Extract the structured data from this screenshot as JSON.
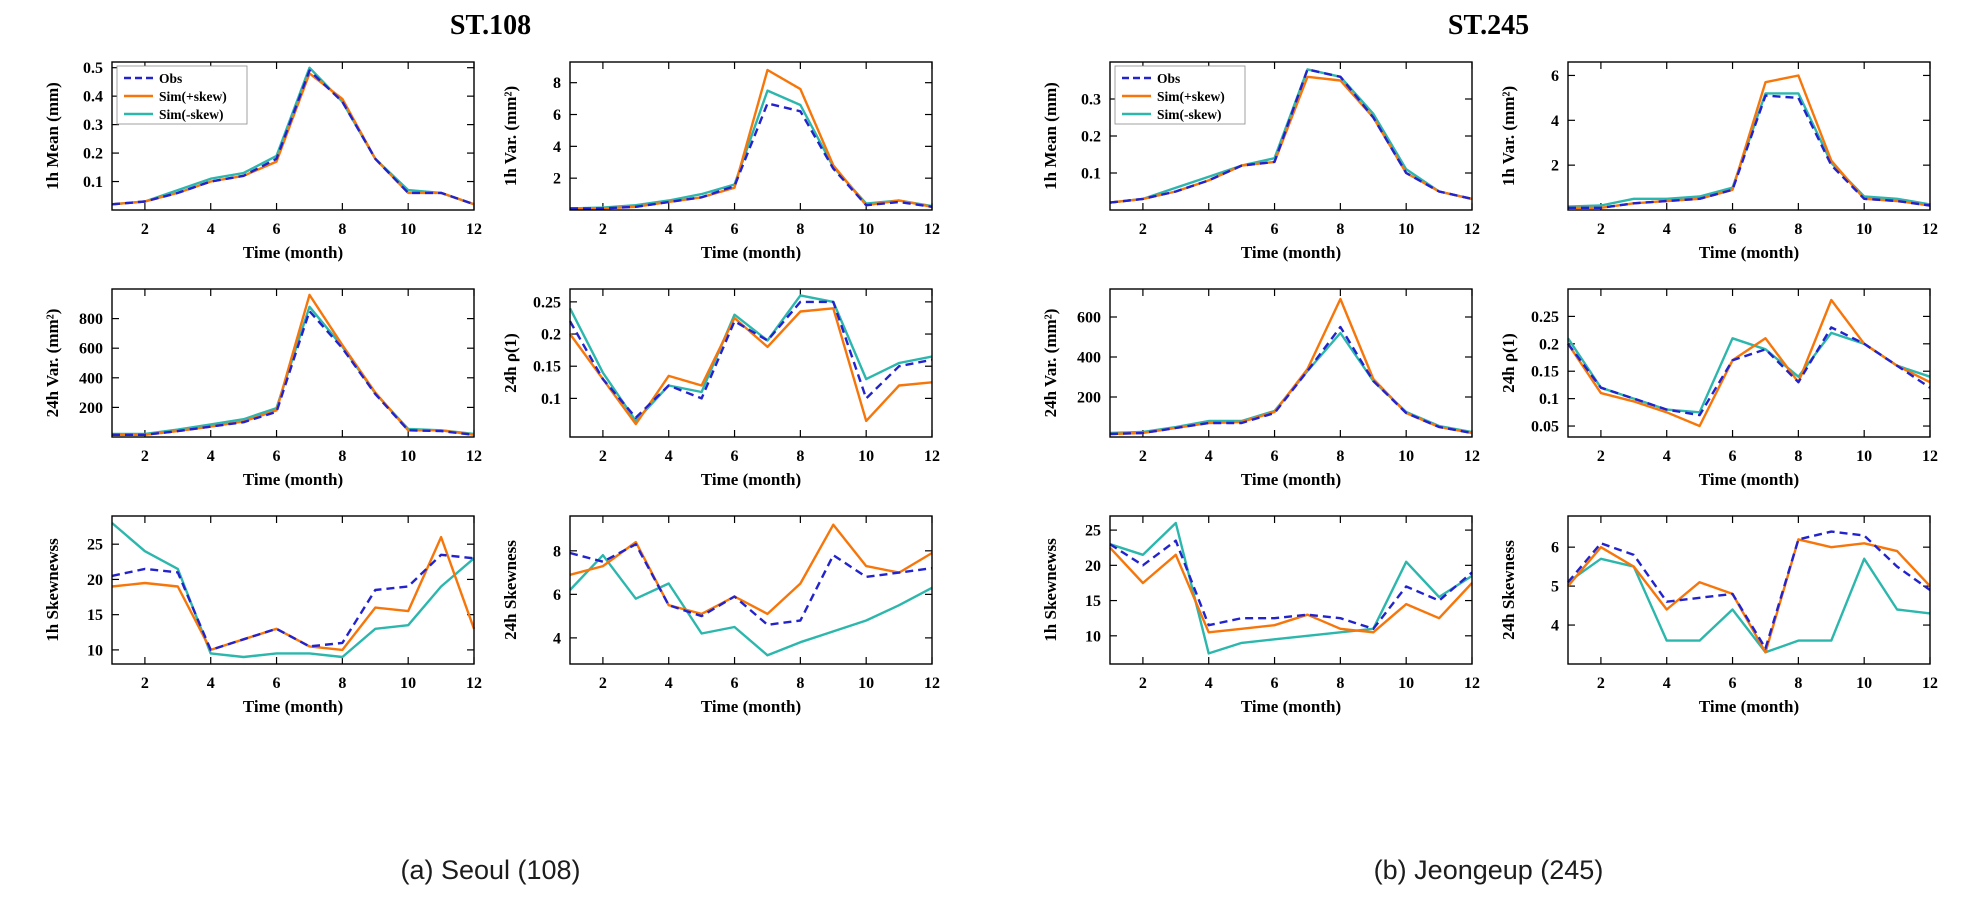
{
  "stations": [
    {
      "title": "ST.108",
      "caption": "(a) Seoul (108)"
    },
    {
      "title": "ST.245",
      "caption": "(b) Jeongeup (245)"
    }
  ],
  "legend": {
    "entries": [
      {
        "label": "Obs",
        "color": "#2323cd",
        "dash": "dashed"
      },
      {
        "label": "Sim(+skew)",
        "color": "#f7760a",
        "dash": "solid"
      },
      {
        "label": "Sim(-skew)",
        "color": "#2cb7ad",
        "dash": "solid"
      }
    ]
  },
  "chart_data": [
    {
      "station_index": 0,
      "type": "line",
      "ylabel": "1h Mean (mm)",
      "xlabel": "Time (month)",
      "x": [
        1,
        2,
        3,
        4,
        5,
        6,
        7,
        8,
        9,
        10,
        11,
        12
      ],
      "xticks": [
        2,
        4,
        6,
        8,
        10,
        12
      ],
      "yticks": [
        0.1,
        0.2,
        0.3,
        0.4,
        0.5
      ],
      "ylim": [
        0,
        0.52
      ],
      "legend": true,
      "series": [
        {
          "name": "Obs",
          "values": [
            0.02,
            0.03,
            0.06,
            0.1,
            0.12,
            0.18,
            0.49,
            0.38,
            0.18,
            0.06,
            0.06,
            0.02
          ]
        },
        {
          "name": "Sim(+skew)",
          "values": [
            0.02,
            0.03,
            0.06,
            0.1,
            0.12,
            0.17,
            0.48,
            0.39,
            0.18,
            0.06,
            0.06,
            0.02
          ]
        },
        {
          "name": "Sim(-skew)",
          "values": [
            0.02,
            0.03,
            0.07,
            0.11,
            0.13,
            0.19,
            0.5,
            0.38,
            0.18,
            0.07,
            0.06,
            0.02
          ]
        }
      ]
    },
    {
      "station_index": 0,
      "type": "line",
      "ylabel": "1h Var. (mm²)",
      "xlabel": "Time (month)",
      "x": [
        1,
        2,
        3,
        4,
        5,
        6,
        7,
        8,
        9,
        10,
        11,
        12
      ],
      "xticks": [
        2,
        4,
        6,
        8,
        10,
        12
      ],
      "yticks": [
        2,
        4,
        6,
        8
      ],
      "ylim": [
        0,
        9.3
      ],
      "legend": false,
      "series": [
        {
          "name": "Obs",
          "values": [
            0.1,
            0.1,
            0.2,
            0.5,
            0.8,
            1.5,
            6.7,
            6.2,
            2.6,
            0.3,
            0.5,
            0.2
          ]
        },
        {
          "name": "Sim(+skew)",
          "values": [
            0.1,
            0.1,
            0.2,
            0.5,
            0.8,
            1.4,
            8.8,
            7.6,
            2.8,
            0.3,
            0.6,
            0.2
          ]
        },
        {
          "name": "Sim(-skew)",
          "values": [
            0.1,
            0.15,
            0.3,
            0.6,
            1.0,
            1.6,
            7.5,
            6.6,
            2.7,
            0.4,
            0.6,
            0.25
          ]
        }
      ]
    },
    {
      "station_index": 0,
      "type": "line",
      "ylabel": "24h Var. (mm²)",
      "xlabel": "Time (month)",
      "x": [
        1,
        2,
        3,
        4,
        5,
        6,
        7,
        8,
        9,
        10,
        11,
        12
      ],
      "xticks": [
        2,
        4,
        6,
        8,
        10,
        12
      ],
      "yticks": [
        200,
        400,
        600,
        800
      ],
      "ylim": [
        0,
        1000
      ],
      "legend": false,
      "series": [
        {
          "name": "Obs",
          "values": [
            15,
            15,
            40,
            70,
            100,
            170,
            850,
            600,
            290,
            45,
            40,
            15
          ]
        },
        {
          "name": "Sim(+skew)",
          "values": [
            15,
            15,
            40,
            70,
            105,
            180,
            960,
            620,
            300,
            45,
            45,
            15
          ]
        },
        {
          "name": "Sim(-skew)",
          "values": [
            20,
            20,
            50,
            85,
            120,
            195,
            880,
            610,
            295,
            55,
            45,
            20
          ]
        }
      ]
    },
    {
      "station_index": 0,
      "type": "line",
      "ylabel": "24h ρ(1)",
      "xlabel": "Time (month)",
      "x": [
        1,
        2,
        3,
        4,
        5,
        6,
        7,
        8,
        9,
        10,
        11,
        12
      ],
      "xticks": [
        2,
        4,
        6,
        8,
        10,
        12
      ],
      "yticks": [
        0.1,
        0.15,
        0.2,
        0.25
      ],
      "ylim": [
        0.04,
        0.27
      ],
      "legend": false,
      "series": [
        {
          "name": "Obs",
          "values": [
            0.22,
            0.13,
            0.07,
            0.12,
            0.1,
            0.22,
            0.19,
            0.25,
            0.25,
            0.1,
            0.15,
            0.16
          ]
        },
        {
          "name": "Sim(+skew)",
          "values": [
            0.2,
            0.13,
            0.06,
            0.135,
            0.12,
            0.225,
            0.18,
            0.235,
            0.24,
            0.065,
            0.12,
            0.125
          ]
        },
        {
          "name": "Sim(-skew)",
          "values": [
            0.24,
            0.14,
            0.065,
            0.12,
            0.11,
            0.23,
            0.19,
            0.26,
            0.25,
            0.13,
            0.155,
            0.165
          ]
        }
      ]
    },
    {
      "station_index": 0,
      "type": "line",
      "ylabel": "1h Skewnewss",
      "xlabel": "Time (month)",
      "x": [
        1,
        2,
        3,
        4,
        5,
        6,
        7,
        8,
        9,
        10,
        11,
        12
      ],
      "xticks": [
        2,
        4,
        6,
        8,
        10,
        12
      ],
      "yticks": [
        10,
        15,
        20,
        25
      ],
      "ylim": [
        8,
        29
      ],
      "legend": false,
      "series": [
        {
          "name": "Obs",
          "values": [
            20.5,
            21.5,
            21,
            10,
            11.5,
            13,
            10.5,
            11,
            18.5,
            19,
            23.5,
            23
          ]
        },
        {
          "name": "Sim(+skew)",
          "values": [
            19,
            19.5,
            19,
            10,
            11.5,
            13,
            10.5,
            10,
            16,
            15.5,
            26,
            13
          ]
        },
        {
          "name": "Sim(-skew)",
          "values": [
            28,
            24,
            21.5,
            9.5,
            9,
            9.5,
            9.5,
            9,
            13,
            13.5,
            19,
            23
          ]
        }
      ]
    },
    {
      "station_index": 0,
      "type": "line",
      "ylabel": "24h Skewness",
      "xlabel": "Time (month)",
      "x": [
        1,
        2,
        3,
        4,
        5,
        6,
        7,
        8,
        9,
        10,
        11,
        12
      ],
      "xticks": [
        2,
        4,
        6,
        8,
        10,
        12
      ],
      "yticks": [
        4,
        6,
        8
      ],
      "ylim": [
        2.8,
        9.6
      ],
      "legend": false,
      "series": [
        {
          "name": "Obs",
          "values": [
            7.9,
            7.5,
            8.3,
            5.5,
            5,
            5.9,
            4.6,
            4.8,
            7.8,
            6.8,
            7,
            7.2
          ]
        },
        {
          "name": "Sim(+skew)",
          "values": [
            6.9,
            7.3,
            8.4,
            5.5,
            5.1,
            5.9,
            5.1,
            6.5,
            9.2,
            7.3,
            7,
            7.9
          ]
        },
        {
          "name": "Sim(-skew)",
          "values": [
            6.2,
            7.8,
            5.8,
            6.5,
            4.2,
            4.5,
            3.2,
            3.8,
            4.3,
            4.8,
            5.5,
            6.3
          ]
        }
      ]
    },
    {
      "station_index": 1,
      "type": "line",
      "ylabel": "1h Mean (mm)",
      "xlabel": "Time (month)",
      "x": [
        1,
        2,
        3,
        4,
        5,
        6,
        7,
        8,
        9,
        10,
        11,
        12
      ],
      "xticks": [
        2,
        4,
        6,
        8,
        10,
        12
      ],
      "yticks": [
        0.1,
        0.2,
        0.3
      ],
      "ylim": [
        0,
        0.4
      ],
      "legend": true,
      "series": [
        {
          "name": "Obs",
          "values": [
            0.02,
            0.03,
            0.05,
            0.08,
            0.12,
            0.13,
            0.38,
            0.36,
            0.25,
            0.1,
            0.05,
            0.03
          ]
        },
        {
          "name": "Sim(+skew)",
          "values": [
            0.02,
            0.03,
            0.05,
            0.08,
            0.12,
            0.13,
            0.36,
            0.35,
            0.25,
            0.1,
            0.05,
            0.03
          ]
        },
        {
          "name": "Sim(-skew)",
          "values": [
            0.02,
            0.03,
            0.06,
            0.09,
            0.12,
            0.14,
            0.38,
            0.36,
            0.26,
            0.11,
            0.05,
            0.03
          ]
        }
      ]
    },
    {
      "station_index": 1,
      "type": "line",
      "ylabel": "1h Var. (mm²)",
      "xlabel": "Time (month)",
      "x": [
        1,
        2,
        3,
        4,
        5,
        6,
        7,
        8,
        9,
        10,
        11,
        12
      ],
      "xticks": [
        2,
        4,
        6,
        8,
        10,
        12
      ],
      "yticks": [
        2,
        4,
        6
      ],
      "ylim": [
        0,
        6.6
      ],
      "legend": false,
      "series": [
        {
          "name": "Obs",
          "values": [
            0.1,
            0.1,
            0.3,
            0.4,
            0.5,
            0.9,
            5.1,
            5.0,
            2.0,
            0.5,
            0.4,
            0.2
          ]
        },
        {
          "name": "Sim(+skew)",
          "values": [
            0.1,
            0.1,
            0.3,
            0.4,
            0.5,
            0.9,
            5.7,
            6.0,
            2.2,
            0.5,
            0.4,
            0.2
          ]
        },
        {
          "name": "Sim(-skew)",
          "values": [
            0.15,
            0.2,
            0.5,
            0.5,
            0.6,
            1.0,
            5.2,
            5.2,
            2.1,
            0.6,
            0.5,
            0.25
          ]
        }
      ]
    },
    {
      "station_index": 1,
      "type": "line",
      "ylabel": "24h Var. (mm²)",
      "xlabel": "Time (month)",
      "x": [
        1,
        2,
        3,
        4,
        5,
        6,
        7,
        8,
        9,
        10,
        11,
        12
      ],
      "xticks": [
        2,
        4,
        6,
        8,
        10,
        12
      ],
      "yticks": [
        200,
        400,
        600
      ],
      "ylim": [
        0,
        740
      ],
      "legend": false,
      "series": [
        {
          "name": "Obs",
          "values": [
            15,
            20,
            45,
            70,
            70,
            120,
            330,
            550,
            280,
            120,
            50,
            20
          ]
        },
        {
          "name": "Sim(+skew)",
          "values": [
            15,
            20,
            45,
            70,
            75,
            125,
            340,
            690,
            290,
            120,
            50,
            20
          ]
        },
        {
          "name": "Sim(-skew)",
          "values": [
            20,
            25,
            50,
            80,
            80,
            130,
            330,
            520,
            280,
            125,
            55,
            25
          ]
        }
      ]
    },
    {
      "station_index": 1,
      "type": "line",
      "ylabel": "24h ρ(1)",
      "xlabel": "Time (month)",
      "x": [
        1,
        2,
        3,
        4,
        5,
        6,
        7,
        8,
        9,
        10,
        11,
        12
      ],
      "xticks": [
        2,
        4,
        6,
        8,
        10,
        12
      ],
      "yticks": [
        0.05,
        0.1,
        0.15,
        0.2,
        0.25
      ],
      "ylim": [
        0.03,
        0.3
      ],
      "legend": false,
      "series": [
        {
          "name": "Obs",
          "values": [
            0.2,
            0.12,
            0.1,
            0.08,
            0.07,
            0.17,
            0.19,
            0.13,
            0.23,
            0.2,
            0.16,
            0.12
          ]
        },
        {
          "name": "Sim(+skew)",
          "values": [
            0.2,
            0.11,
            0.095,
            0.075,
            0.05,
            0.17,
            0.21,
            0.13,
            0.28,
            0.2,
            0.16,
            0.13
          ]
        },
        {
          "name": "Sim(-skew)",
          "values": [
            0.21,
            0.12,
            0.1,
            0.08,
            0.075,
            0.21,
            0.19,
            0.14,
            0.22,
            0.2,
            0.16,
            0.14
          ]
        }
      ]
    },
    {
      "station_index": 1,
      "type": "line",
      "ylabel": "1h Skewnewss",
      "xlabel": "Time (month)",
      "x": [
        1,
        2,
        3,
        4,
        5,
        6,
        7,
        8,
        9,
        10,
        11,
        12
      ],
      "xticks": [
        2,
        4,
        6,
        8,
        10,
        12
      ],
      "yticks": [
        10,
        15,
        20,
        25
      ],
      "ylim": [
        6,
        27
      ],
      "legend": false,
      "series": [
        {
          "name": "Obs",
          "values": [
            23,
            20,
            23.5,
            11.5,
            12.5,
            12.5,
            13,
            12.5,
            11,
            17,
            15,
            19
          ]
        },
        {
          "name": "Sim(+skew)",
          "values": [
            22.5,
            17.5,
            21.5,
            10.5,
            11,
            11.5,
            13,
            11,
            10.5,
            14.5,
            12.5,
            17.5
          ]
        },
        {
          "name": "Sim(-skew)",
          "values": [
            23,
            21.5,
            26,
            7.5,
            9,
            9.5,
            10,
            10.5,
            11,
            20.5,
            15.5,
            18.5
          ]
        }
      ]
    },
    {
      "station_index": 1,
      "type": "line",
      "ylabel": "24h Skewness",
      "xlabel": "Time (month)",
      "x": [
        1,
        2,
        3,
        4,
        5,
        6,
        7,
        8,
        9,
        10,
        11,
        12
      ],
      "xticks": [
        2,
        4,
        6,
        8,
        10,
        12
      ],
      "yticks": [
        4,
        5,
        6
      ],
      "ylim": [
        3,
        6.8
      ],
      "legend": false,
      "series": [
        {
          "name": "Obs",
          "values": [
            5.1,
            6.1,
            5.8,
            4.6,
            4.7,
            4.8,
            3.4,
            6.2,
            6.4,
            6.3,
            5.5,
            4.9
          ]
        },
        {
          "name": "Sim(+skew)",
          "values": [
            5,
            6,
            5.5,
            4.4,
            5.1,
            4.8,
            3.3,
            6.2,
            6,
            6.1,
            5.9,
            5
          ]
        },
        {
          "name": "Sim(-skew)",
          "values": [
            5.1,
            5.7,
            5.5,
            3.6,
            3.6,
            4.4,
            3.3,
            3.6,
            3.6,
            5.7,
            4.4,
            4.3
          ]
        }
      ]
    }
  ]
}
